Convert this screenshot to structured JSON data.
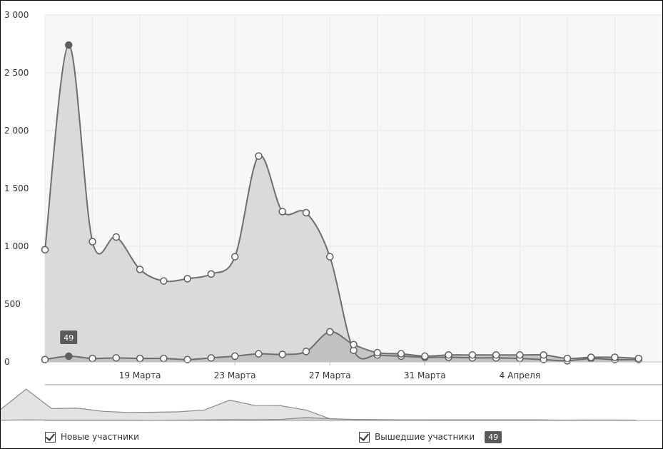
{
  "chart_data": {
    "type": "area",
    "title": "",
    "xlabel": "",
    "ylabel": "",
    "ylim": [
      0,
      3000
    ],
    "yticks": [
      0,
      500,
      1000,
      1500,
      2000,
      2500,
      3000
    ],
    "ytick_labels": [
      "0",
      "500",
      "1 000",
      "1 500",
      "2 000",
      "2 500",
      "3 000"
    ],
    "x_start": "2025-03-15",
    "x": [
      "2025-03-15",
      "2025-03-16",
      "2025-03-17",
      "2025-03-18",
      "2025-03-19",
      "2025-03-20",
      "2025-03-21",
      "2025-03-22",
      "2025-03-23",
      "2025-03-24",
      "2025-03-25",
      "2025-03-26",
      "2025-03-27",
      "2025-03-28",
      "2025-03-29",
      "2025-03-30",
      "2025-03-31",
      "2025-04-01",
      "2025-04-02",
      "2025-04-03",
      "2025-04-04",
      "2025-04-05",
      "2025-04-06",
      "2025-04-07",
      "2025-04-08",
      "2025-04-09"
    ],
    "xlim": [
      "2025-03-15",
      "2025-04-10"
    ],
    "xticks": [
      "2025-03-19",
      "2025-03-23",
      "2025-03-27",
      "2025-03-31",
      "2025-04-04"
    ],
    "xtick_labels": [
      "19 Марта",
      "23 Марта",
      "27 Марта",
      "31 Марта",
      "4 Апреля"
    ],
    "grid": true,
    "series": [
      {
        "name": "Новые участники",
        "values": [
          970,
          2740,
          1040,
          1080,
          800,
          700,
          720,
          760,
          910,
          1780,
          1300,
          1290,
          910,
          100,
          60,
          50,
          40,
          40,
          35,
          35,
          30,
          20,
          10,
          30,
          20,
          20
        ],
        "color": "#6e6e6e",
        "fill": "#d6d6d6"
      },
      {
        "name": "Вышедшие участники",
        "values": [
          20,
          49,
          30,
          35,
          30,
          30,
          20,
          35,
          50,
          70,
          65,
          90,
          260,
          150,
          80,
          70,
          50,
          60,
          60,
          60,
          60,
          60,
          30,
          40,
          40,
          30
        ],
        "color": "#6e6e6e",
        "fill": "#bdbdbd"
      }
    ],
    "tooltip": {
      "series": "Вышедшие участники",
      "date": "2025-03-16",
      "value": "49"
    },
    "legend": {
      "position": "bottom",
      "items": [
        {
          "label": "Новые участники",
          "checked": true
        },
        {
          "label": "Вышедшие участники",
          "checked": true
        }
      ],
      "badge": "49"
    }
  }
}
